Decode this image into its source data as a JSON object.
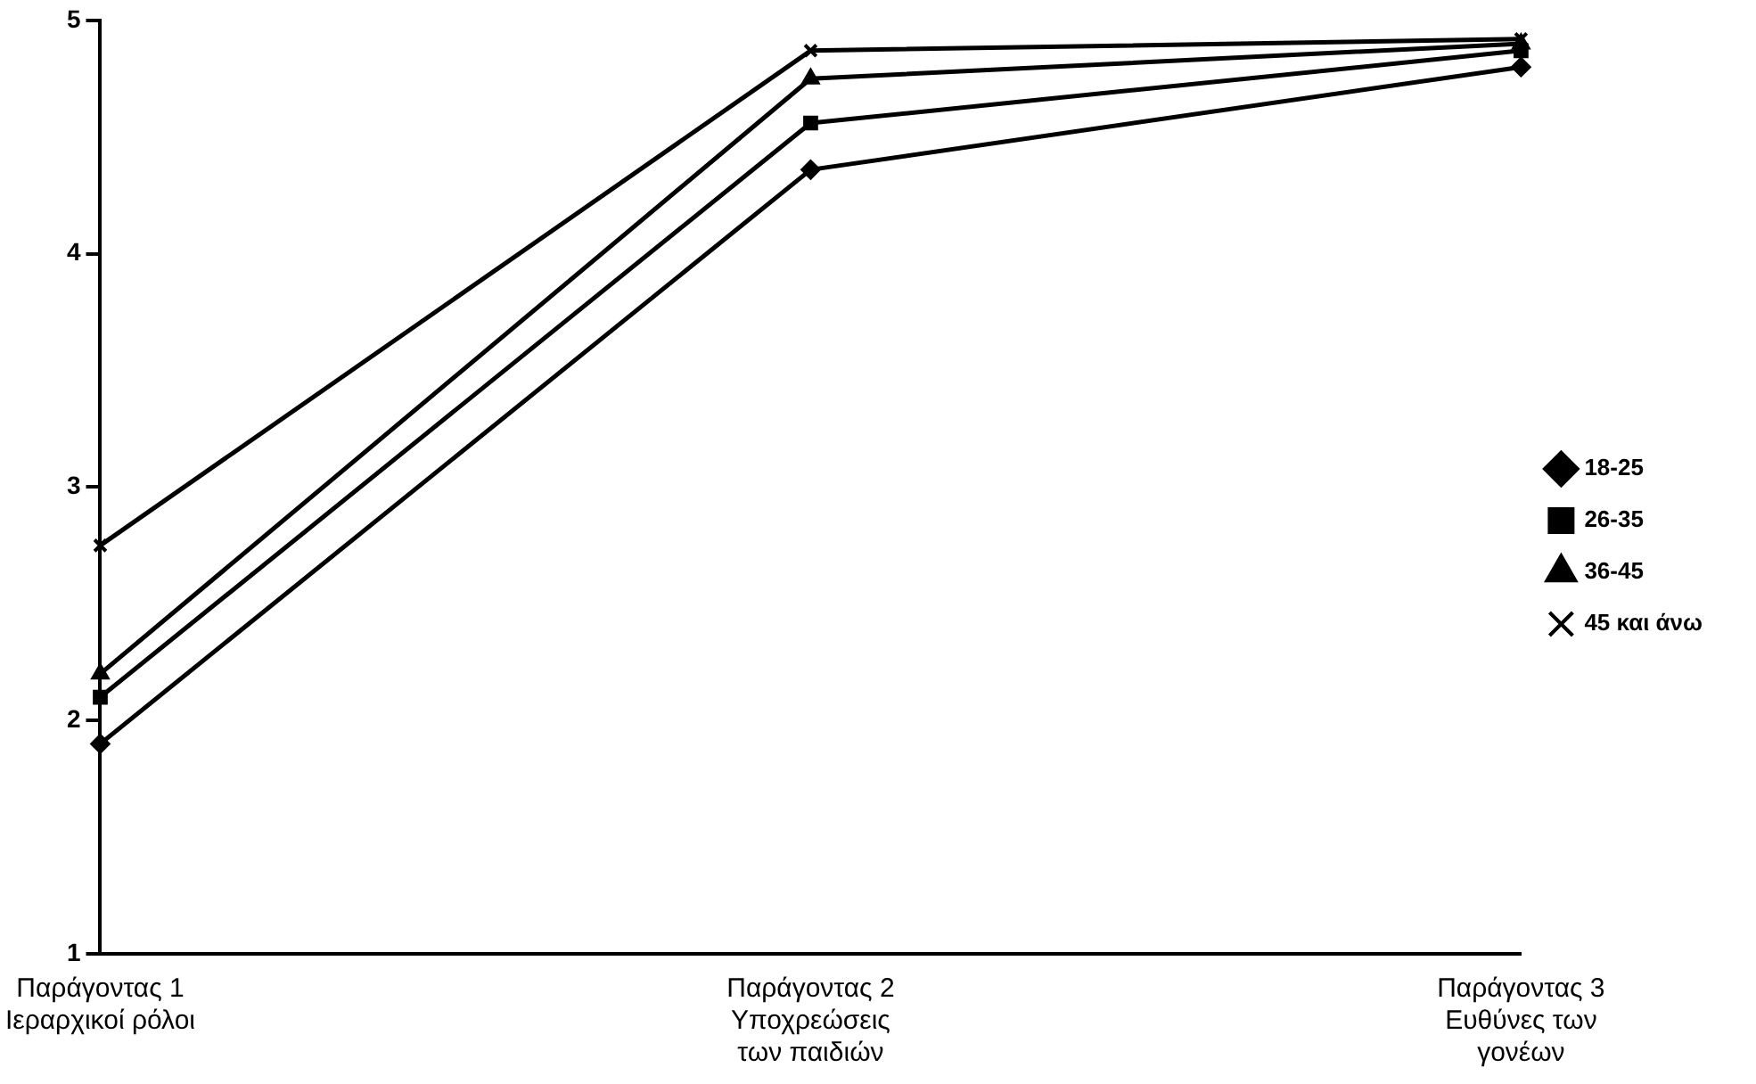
{
  "chart_data": {
    "type": "line",
    "categories": [
      "Παράγοντας 1\nΙεραρχικοί ρόλοι",
      "Παράγοντας 2\nΥποχρεώσεις\nτων παιδιών",
      "Παράγοντας 3\nΕυθύνες των\nγονέων"
    ],
    "series": [
      {
        "name": "18-25",
        "color": "#000000",
        "marker": "diamond",
        "values": [
          1.9,
          4.36,
          4.8
        ]
      },
      {
        "name": "26-35",
        "color": "#000000",
        "marker": "square",
        "values": [
          2.1,
          4.56,
          4.87
        ]
      },
      {
        "name": "36-45",
        "color": "#000000",
        "marker": "triangle",
        "values": [
          2.2,
          4.75,
          4.9
        ]
      },
      {
        "name": "45 και άνω",
        "color": "#000000",
        "marker": "cross",
        "values": [
          2.75,
          4.87,
          4.92
        ]
      }
    ],
    "ylim": [
      1,
      5
    ],
    "yticks": [
      1,
      2,
      3,
      4,
      5
    ],
    "grid": false,
    "legend": "right"
  }
}
